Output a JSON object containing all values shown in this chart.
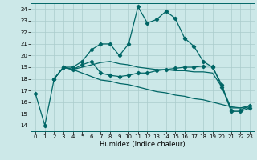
{
  "xlabel": "Humidex (Indice chaleur)",
  "bg_color": "#cce8e8",
  "grid_color": "#aacccc",
  "line_color": "#006666",
  "xlim": [
    -0.5,
    23.5
  ],
  "ylim": [
    13.5,
    24.5
  ],
  "yticks": [
    14,
    15,
    16,
    17,
    18,
    19,
    20,
    21,
    22,
    23,
    24
  ],
  "xticks": [
    0,
    1,
    2,
    3,
    4,
    5,
    6,
    7,
    8,
    9,
    10,
    11,
    12,
    13,
    14,
    15,
    16,
    17,
    18,
    19,
    20,
    21,
    22,
    23
  ],
  "line1_x": [
    0,
    1,
    2,
    3,
    4,
    5,
    6,
    7,
    8,
    9,
    10,
    11,
    12,
    13,
    14,
    15,
    16,
    17,
    18,
    19,
    20,
    21,
    22,
    23
  ],
  "line1_y": [
    16.7,
    14.0,
    18.0,
    19.0,
    19.0,
    19.5,
    20.5,
    21.0,
    21.0,
    20.0,
    21.0,
    24.2,
    22.8,
    23.1,
    23.8,
    23.2,
    21.5,
    20.8,
    19.5,
    19.0,
    17.5,
    15.2,
    15.2,
    15.5
  ],
  "line2_x": [
    2,
    3,
    4,
    5,
    6,
    7,
    8,
    9,
    10,
    11,
    12,
    13,
    14,
    15,
    16,
    17,
    18,
    19,
    20,
    21,
    22,
    23
  ],
  "line2_y": [
    18.0,
    19.0,
    18.8,
    19.2,
    19.5,
    18.5,
    18.3,
    18.2,
    18.3,
    18.5,
    18.5,
    18.7,
    18.8,
    18.9,
    19.0,
    19.0,
    19.1,
    19.1,
    17.3,
    15.3,
    15.3,
    15.7
  ],
  "line3_x": [
    2,
    3,
    4,
    5,
    6,
    7,
    8,
    9,
    10,
    11,
    12,
    13,
    14,
    15,
    16,
    17,
    18,
    19,
    20,
    21,
    22,
    23
  ],
  "line3_y": [
    18.0,
    19.0,
    18.8,
    18.5,
    18.2,
    17.9,
    17.8,
    17.6,
    17.5,
    17.3,
    17.1,
    16.9,
    16.8,
    16.6,
    16.5,
    16.3,
    16.2,
    16.0,
    15.8,
    15.6,
    15.5,
    15.5
  ],
  "line4_x": [
    2,
    3,
    4,
    5,
    6,
    7,
    8,
    9,
    10,
    11,
    12,
    13,
    14,
    15,
    16,
    17,
    18,
    19,
    20,
    21,
    22,
    23
  ],
  "line4_y": [
    18.0,
    19.0,
    18.8,
    19.0,
    19.2,
    19.4,
    19.5,
    19.3,
    19.2,
    19.0,
    18.9,
    18.8,
    18.8,
    18.7,
    18.7,
    18.6,
    18.6,
    18.5,
    17.3,
    15.5,
    15.5,
    15.7
  ]
}
